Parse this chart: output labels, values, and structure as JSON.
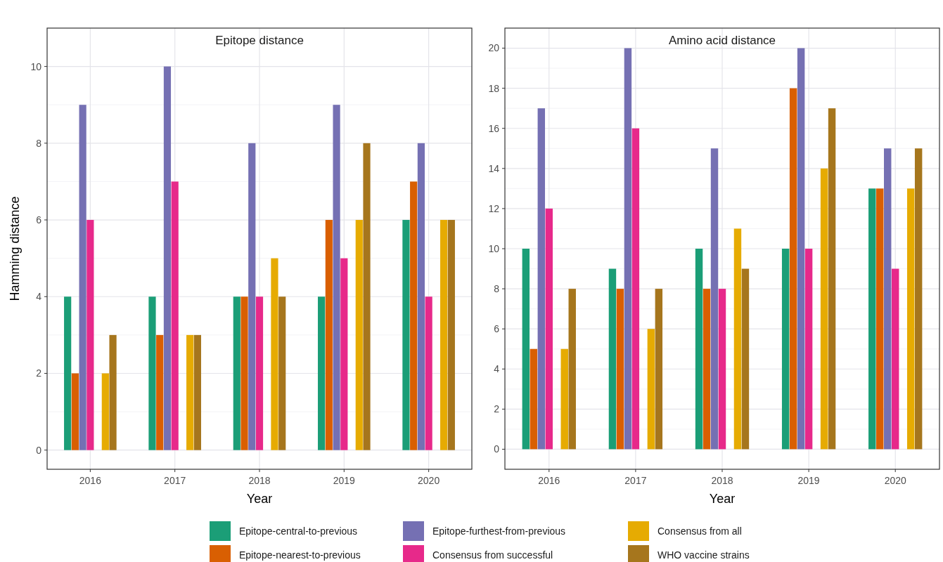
{
  "chart_data": [
    {
      "type": "bar",
      "title": "Epitope distance",
      "xlabel": "Year",
      "ylabel": "Hamming distance",
      "categories": [
        "2016",
        "2017",
        "2018",
        "2019",
        "2020"
      ],
      "ylim": [
        -0.5,
        11
      ],
      "yticks": [
        0,
        2,
        4,
        6,
        8,
        10
      ],
      "grid": true,
      "legend": "bottom",
      "series": [
        {
          "name": "Epitope-central-to-previous",
          "color": "#1b9e77",
          "values": [
            4,
            4,
            4,
            4,
            6
          ]
        },
        {
          "name": "Epitope-nearest-to-previous",
          "color": "#d95f02",
          "values": [
            2,
            3,
            4,
            6,
            7
          ]
        },
        {
          "name": "Epitope-furthest-from-previous",
          "color": "#7570b3",
          "values": [
            9,
            10,
            8,
            9,
            8
          ]
        },
        {
          "name": "Consensus from successful",
          "color": "#e7298a",
          "values": [
            6,
            7,
            4,
            5,
            4
          ]
        },
        {
          "values": [
            null,
            null,
            null,
            null,
            null
          ]
        },
        {
          "name": "Consensus from all",
          "color": "#e6ab02",
          "values": [
            2,
            3,
            5,
            6,
            6
          ]
        },
        {
          "name": "WHO vaccine strains",
          "color": "#a6761d",
          "values": [
            3,
            3,
            4,
            8,
            6
          ]
        }
      ]
    },
    {
      "type": "bar",
      "title": "Amino acid distance",
      "xlabel": "Year",
      "categories": [
        "2016",
        "2017",
        "2018",
        "2019",
        "2020"
      ],
      "ylim": [
        -1,
        21
      ],
      "yticks": [
        0,
        2,
        4,
        6,
        8,
        10,
        12,
        14,
        16,
        18,
        20
      ],
      "grid": true,
      "legend": "bottom",
      "series": [
        {
          "name": "Epitope-central-to-previous",
          "color": "#1b9e77",
          "values": [
            10,
            9,
            10,
            10,
            13
          ]
        },
        {
          "name": "Epitope-nearest-to-previous",
          "color": "#d95f02",
          "values": [
            5,
            8,
            8,
            18,
            13
          ]
        },
        {
          "name": "Epitope-furthest-from-previous",
          "color": "#7570b3",
          "values": [
            17,
            20,
            15,
            20,
            15
          ]
        },
        {
          "name": "Consensus from successful",
          "color": "#e7298a",
          "values": [
            12,
            16,
            8,
            10,
            9
          ]
        },
        {
          "values": [
            null,
            null,
            null,
            null,
            null
          ]
        },
        {
          "name": "Consensus from all",
          "color": "#e6ab02",
          "values": [
            5,
            6,
            11,
            14,
            13
          ]
        },
        {
          "name": "WHO vaccine strains",
          "color": "#a6761d",
          "values": [
            8,
            8,
            9,
            17,
            15
          ]
        }
      ]
    }
  ]
}
